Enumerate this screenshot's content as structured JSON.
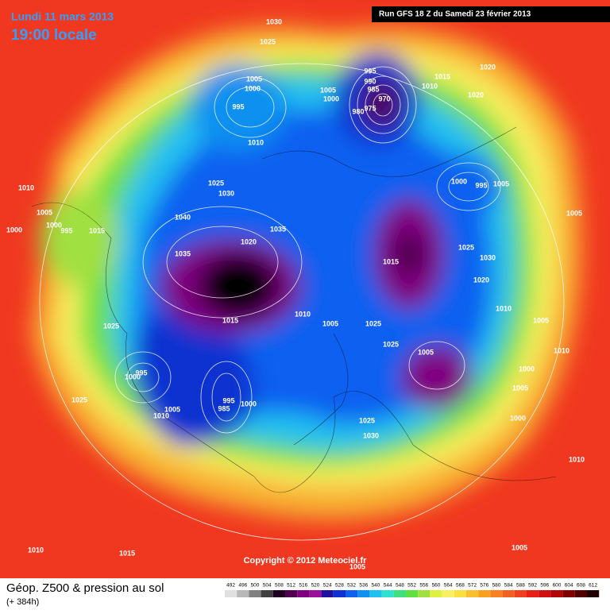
{
  "header": {
    "date": "Lundi 11 mars 2013",
    "time": "19:00 locale",
    "run": "Run GFS 18 Z du Samedi 23 février 2013"
  },
  "footer": {
    "title": "Géop. Z500 & pression au sol",
    "lead": "(+ 384h)",
    "copyright": "Copyright © 2012 Meteociel.fr"
  },
  "legend": {
    "ticks": [
      492,
      496,
      500,
      504,
      508,
      512,
      516,
      520,
      524,
      528,
      532,
      536,
      540,
      544,
      548,
      552,
      556,
      560,
      564,
      568,
      572,
      576,
      580,
      584,
      588,
      592,
      596,
      600,
      604,
      608,
      612
    ],
    "colors": [
      "#e0e0e0",
      "#b8b8b8",
      "#808080",
      "#404040",
      "#200020",
      "#500050",
      "#800080",
      "#9a109a",
      "#2010a0",
      "#1030d0",
      "#1060f0",
      "#1090f0",
      "#20c0f0",
      "#30e0d0",
      "#40e080",
      "#60e040",
      "#a0e040",
      "#e0f040",
      "#f8f060",
      "#f8e040",
      "#f8c030",
      "#f8a020",
      "#f88020",
      "#f06020",
      "#f04020",
      "#e82018",
      "#d01010",
      "#b00808",
      "#800000",
      "#500000",
      "#200000"
    ]
  },
  "isobar_labels": [
    "1030",
    "1025",
    "1005",
    "1000",
    "995",
    "1010",
    "995",
    "990",
    "985",
    "970",
    "975",
    "980",
    "1005",
    "1000",
    "1015",
    "1010",
    "1020",
    "1020",
    "1000",
    "995",
    "1005",
    "1005",
    "1010",
    "1005",
    "1000",
    "1000",
    "995",
    "1015",
    "1025",
    "1030",
    "1040",
    "1035",
    "1020",
    "1035",
    "1015",
    "1025",
    "1030",
    "1020",
    "1010",
    "1005",
    "1010",
    "1015",
    "1010",
    "1005",
    "1025",
    "1025",
    "1025",
    "1005",
    "1000",
    "1005",
    "1000",
    "1000",
    "995",
    "995",
    "985",
    "1000",
    "1005",
    "1010",
    "1025",
    "1025",
    "1030",
    "1010",
    "1010",
    "1015",
    "1005",
    "1005"
  ]
}
